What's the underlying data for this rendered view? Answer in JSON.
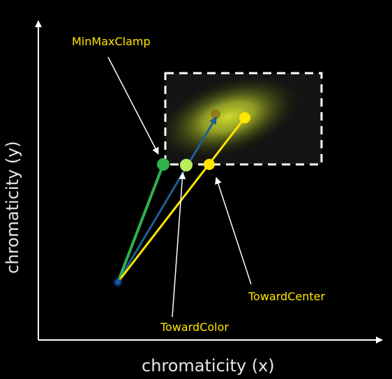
{
  "axes": {
    "x_label": "chromaticity (x)",
    "y_label": "chromaticity (y)"
  },
  "labels": {
    "minmaxclamp": "MinMaxClamp",
    "towardcolor": "TowardColor",
    "towardcenter": "TowardCenter"
  },
  "colors": {
    "background": "#000000",
    "axis": "#ffffff",
    "axis_text": "#e6e6e6",
    "label_text": "#ffe600",
    "minmaxclamp_ray": "#2fb24c",
    "towardcolor_ray": "#1f5f94",
    "towardcenter_ray": "#ffe600",
    "box_border": "#ffffff",
    "gamut_glow": "#d8e830"
  }
}
